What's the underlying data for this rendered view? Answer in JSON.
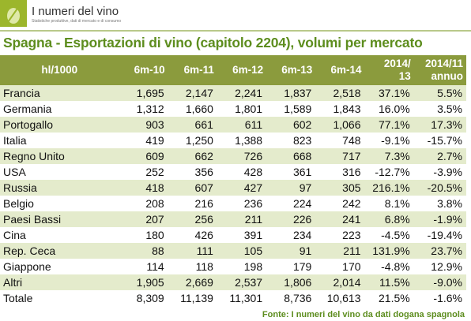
{
  "header": {
    "brand": "I numeri del vino",
    "tagline": "Statistiche produttive, dati di mercato e di consumo",
    "title": "Spagna - Esportazioni di vino (capitolo 2204), volumi per mercato"
  },
  "table": {
    "columns": [
      "hl/1000",
      "6m-10",
      "6m-11",
      "6m-12",
      "6m-13",
      "6m-14",
      "2014/\n13",
      "2014/11\nannuo"
    ],
    "rows": [
      [
        "Francia",
        "1,695",
        "2,147",
        "2,241",
        "1,837",
        "2,518",
        "37.1%",
        "5.5%"
      ],
      [
        "Germania",
        "1,312",
        "1,660",
        "1,801",
        "1,589",
        "1,843",
        "16.0%",
        "3.5%"
      ],
      [
        "Portogallo",
        "903",
        "661",
        "611",
        "602",
        "1,066",
        "77.1%",
        "17.3%"
      ],
      [
        "Italia",
        "419",
        "1,250",
        "1,388",
        "823",
        "748",
        "-9.1%",
        "-15.7%"
      ],
      [
        "Regno Unito",
        "609",
        "662",
        "726",
        "668",
        "717",
        "7.3%",
        "2.7%"
      ],
      [
        "USA",
        "252",
        "356",
        "428",
        "361",
        "316",
        "-12.7%",
        "-3.9%"
      ],
      [
        "Russia",
        "418",
        "607",
        "427",
        "97",
        "305",
        "216.1%",
        "-20.5%"
      ],
      [
        "Belgio",
        "208",
        "216",
        "236",
        "224",
        "242",
        "8.1%",
        "3.8%"
      ],
      [
        "Paesi Bassi",
        "207",
        "256",
        "211",
        "226",
        "241",
        "6.8%",
        "-1.9%"
      ],
      [
        "Cina",
        "180",
        "426",
        "391",
        "234",
        "223",
        "-4.5%",
        "-19.4%"
      ],
      [
        "Rep. Ceca",
        "88",
        "111",
        "105",
        "91",
        "211",
        "131.9%",
        "23.7%"
      ],
      [
        "Giappone",
        "114",
        "118",
        "198",
        "179",
        "170",
        "-4.8%",
        "12.9%"
      ],
      [
        "Altri",
        "1,905",
        "2,669",
        "2,537",
        "1,806",
        "2,014",
        "11.5%",
        "-9.0%"
      ],
      [
        "Totale",
        "8,309",
        "11,139",
        "11,301",
        "8,736",
        "10,613",
        "21.5%",
        "-1.6%"
      ]
    ]
  },
  "footer": {
    "source": "Fonte: I numeri del vino da dati dogana spagnola"
  }
}
